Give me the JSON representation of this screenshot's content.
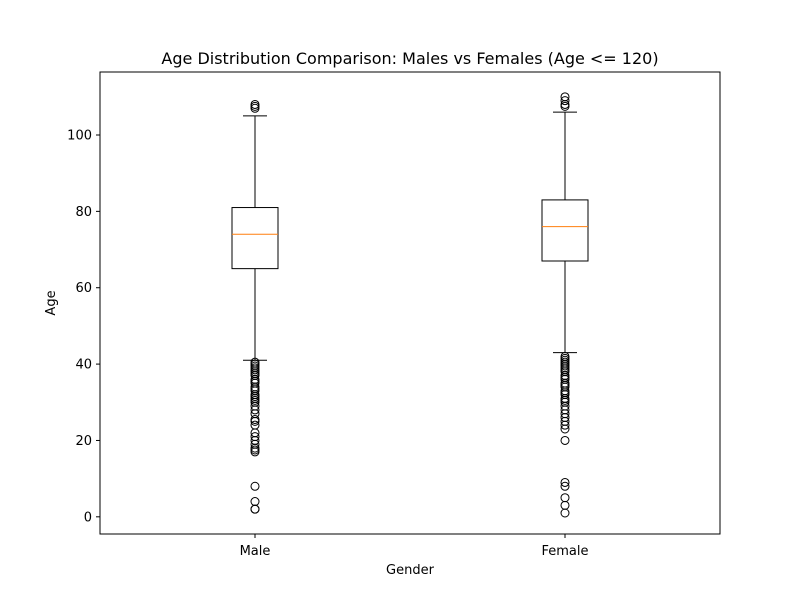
{
  "chart_data": {
    "type": "box",
    "title": "Age Distribution Comparison: Males vs Females (Age <= 120)",
    "xlabel": "Gender",
    "ylabel": "Age",
    "categories": [
      "Male",
      "Female"
    ],
    "ylim": [
      -4.5,
      116.5
    ],
    "yticks": [
      0,
      20,
      40,
      60,
      80,
      100
    ],
    "grid": false,
    "colors": {
      "box": "#000000",
      "median": "#ff7f0e",
      "whisker": "#000000",
      "flier": "#000000"
    },
    "boxes": [
      {
        "name": "Male",
        "whislo": 41,
        "q1": 65,
        "median": 74,
        "q3": 81,
        "whishi": 105,
        "fliers": [
          2,
          2,
          4,
          8,
          17,
          17.5,
          18,
          19,
          20,
          21,
          22,
          24,
          25,
          25.5,
          27,
          28,
          29,
          30,
          30.5,
          31,
          31.5,
          32,
          33,
          33.5,
          34,
          35,
          35.5,
          36,
          37,
          37.5,
          38,
          38.5,
          39,
          39.5,
          40,
          40.5,
          107,
          107.5,
          108
        ]
      },
      {
        "name": "Female",
        "whislo": 43,
        "q1": 67,
        "median": 76,
        "q3": 83,
        "whishi": 106,
        "fliers": [
          1,
          3,
          5,
          8,
          9,
          20,
          23,
          24,
          25,
          26,
          27,
          28,
          29,
          30,
          30.5,
          31,
          32,
          32.5,
          33,
          34,
          34.5,
          35,
          36,
          36.5,
          37,
          38,
          38.5,
          39,
          39.5,
          40,
          40.5,
          41,
          41.5,
          42,
          107.5,
          108,
          109,
          110
        ]
      }
    ]
  }
}
